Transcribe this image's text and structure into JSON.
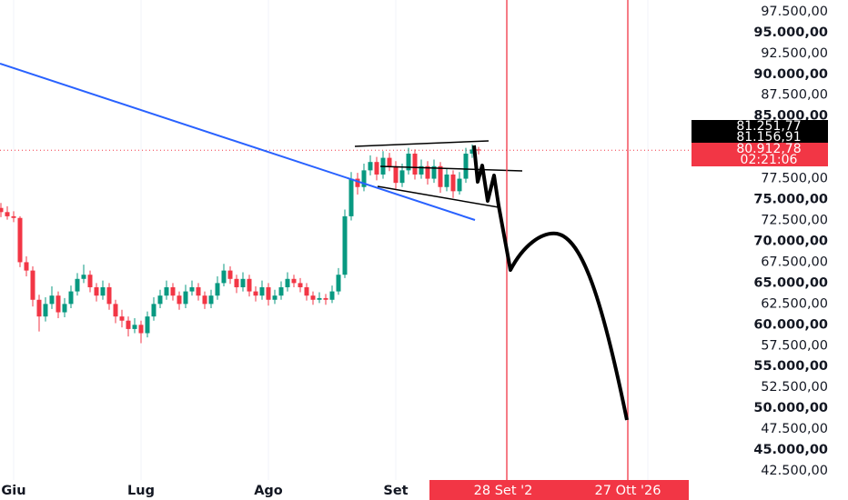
{
  "chart_data": {
    "type": "candlestick",
    "up_color": "#089981",
    "down_color": "#f23645",
    "ylim": [
      41200,
      98900
    ],
    "yticks": [
      {
        "value": 42500,
        "label": "42.500,00"
      },
      {
        "value": 45000,
        "label": "45.000,00"
      },
      {
        "value": 47500,
        "label": "47.500,00"
      },
      {
        "value": 50000,
        "label": "50.000,00"
      },
      {
        "value": 52500,
        "label": "52.500,00"
      },
      {
        "value": 55000,
        "label": "55.000,00"
      },
      {
        "value": 57500,
        "label": "57.500,00"
      },
      {
        "value": 60000,
        "label": "60.000,00"
      },
      {
        "value": 62500,
        "label": "62.500,00"
      },
      {
        "value": 65000,
        "label": "65.000,00"
      },
      {
        "value": 67500,
        "label": "67.500,00"
      },
      {
        "value": 70000,
        "label": "70.000,00"
      },
      {
        "value": 72500,
        "label": "72.500,00"
      },
      {
        "value": 75000,
        "label": "75.000,00"
      },
      {
        "value": 77500,
        "label": "77.500,00"
      },
      {
        "value": 85000,
        "label": "85.000,00"
      },
      {
        "value": 87500,
        "label": "87.500,00"
      },
      {
        "value": 90000,
        "label": "90.000,00"
      },
      {
        "value": 92500,
        "label": "92.500,00"
      },
      {
        "value": 95000,
        "label": "95.000,00"
      },
      {
        "value": 97500,
        "label": "97.500,00"
      }
    ],
    "time_labels": [
      "Giu",
      "Lug",
      "Ago",
      "Set"
    ],
    "markers": [
      "28 Set '2",
      "27 Ott '26"
    ],
    "price_labels": [
      "81.251,77",
      "81.156,91"
    ],
    "last_price": {
      "value": 80912.78,
      "label": "80.912,78"
    },
    "countdown": "02:21:06",
    "ohlc": [
      [
        74000,
        74600,
        72900,
        73500
      ],
      [
        73500,
        74200,
        72600,
        73000
      ],
      [
        73000,
        73600,
        72300,
        72800
      ],
      [
        72800,
        73000,
        66900,
        67500
      ],
      [
        67500,
        68200,
        65800,
        66500
      ],
      [
        66500,
        67000,
        62200,
        63000
      ],
      [
        63000,
        63600,
        59200,
        61000
      ],
      [
        61000,
        63300,
        60400,
        62500
      ],
      [
        62500,
        64600,
        61900,
        63500
      ],
      [
        63500,
        64000,
        60800,
        61500
      ],
      [
        61500,
        63200,
        60900,
        62500
      ],
      [
        62500,
        64700,
        62000,
        64000
      ],
      [
        64000,
        66200,
        63500,
        65500
      ],
      [
        65500,
        67200,
        65000,
        66000
      ],
      [
        66000,
        66500,
        63900,
        64500
      ],
      [
        64500,
        65000,
        62800,
        63500
      ],
      [
        63500,
        65300,
        63000,
        64500
      ],
      [
        64500,
        65000,
        61800,
        62500
      ],
      [
        62500,
        63000,
        60200,
        61000
      ],
      [
        61000,
        61800,
        59700,
        60500
      ],
      [
        60500,
        61000,
        58600,
        59500
      ],
      [
        59500,
        60800,
        59000,
        60000
      ],
      [
        60000,
        60500,
        57800,
        59000
      ],
      [
        59000,
        61600,
        58500,
        61000
      ],
      [
        61000,
        63300,
        60500,
        62500
      ],
      [
        62500,
        64200,
        62000,
        63500
      ],
      [
        63500,
        65300,
        63000,
        64500
      ],
      [
        64500,
        65000,
        62900,
        63500
      ],
      [
        63500,
        64000,
        61800,
        62500
      ],
      [
        62500,
        64800,
        62000,
        64000
      ],
      [
        64000,
        65300,
        63500,
        64500
      ],
      [
        64500,
        65000,
        62900,
        63500
      ],
      [
        63500,
        64000,
        61900,
        62500
      ],
      [
        62500,
        64200,
        62000,
        63500
      ],
      [
        63500,
        65800,
        63000,
        65000
      ],
      [
        65000,
        67300,
        64600,
        66500
      ],
      [
        66500,
        67000,
        64900,
        65500
      ],
      [
        65500,
        66000,
        63800,
        64500
      ],
      [
        64500,
        66300,
        64000,
        65500
      ],
      [
        65500,
        66000,
        63400,
        64000
      ],
      [
        64000,
        64600,
        62800,
        63500
      ],
      [
        63500,
        65300,
        63000,
        64500
      ],
      [
        64500,
        65000,
        62300,
        63000
      ],
      [
        63000,
        64200,
        62500,
        63500
      ],
      [
        63500,
        65200,
        63000,
        64500
      ],
      [
        64500,
        66300,
        64000,
        65500
      ],
      [
        65500,
        66000,
        64500,
        65000
      ],
      [
        65000,
        65600,
        63900,
        64500
      ],
      [
        64500,
        65000,
        62900,
        63500
      ],
      [
        63500,
        64000,
        62400,
        63000
      ],
      [
        63000,
        63900,
        62600,
        63200
      ],
      [
        63200,
        63700,
        62400,
        63000
      ],
      [
        63000,
        64700,
        62600,
        64000
      ],
      [
        64000,
        66800,
        63600,
        66000
      ],
      [
        66000,
        73800,
        65600,
        73000
      ],
      [
        73000,
        78300,
        72500,
        77500
      ],
      [
        77500,
        78200,
        75600,
        76500
      ],
      [
        76500,
        79300,
        76000,
        78500
      ],
      [
        78500,
        80300,
        77900,
        79500
      ],
      [
        79500,
        80100,
        77300,
        78000
      ],
      [
        78000,
        80800,
        77500,
        80000
      ],
      [
        80000,
        80600,
        78400,
        79000
      ],
      [
        79000,
        79600,
        76300,
        77000
      ],
      [
        77000,
        79300,
        76500,
        78500
      ],
      [
        78500,
        81200,
        78000,
        80500
      ],
      [
        80500,
        81000,
        77400,
        78000
      ],
      [
        78000,
        79800,
        77500,
        79000
      ],
      [
        79000,
        79600,
        76800,
        77500
      ],
      [
        77500,
        79800,
        77000,
        79000
      ],
      [
        79000,
        79500,
        75800,
        76500
      ],
      [
        76500,
        78700,
        76000,
        78000
      ],
      [
        78000,
        78500,
        75200,
        76000
      ],
      [
        76000,
        78300,
        75600,
        77500
      ],
      [
        77500,
        81200,
        77000,
        80500
      ],
      [
        80500,
        81600,
        80000,
        81000
      ],
      [
        81000,
        81300,
        80400,
        80912.78
      ]
    ]
  }
}
